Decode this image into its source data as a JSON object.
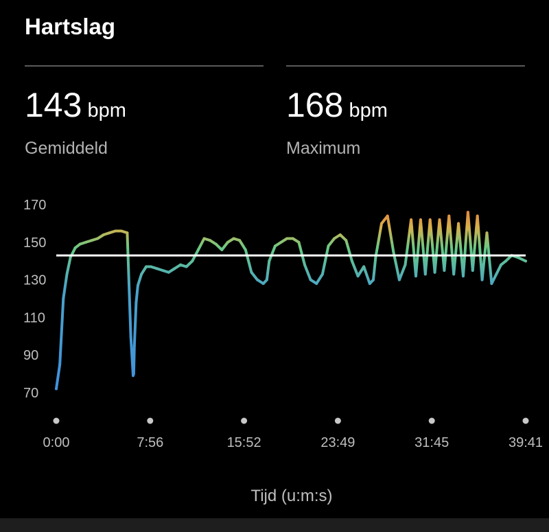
{
  "header": {
    "title": "Hartslag"
  },
  "stats": {
    "average": {
      "value": "143",
      "unit": "bpm",
      "label": "Gemiddeld"
    },
    "maximum": {
      "value": "168",
      "unit": "bpm",
      "label": "Maximum"
    }
  },
  "chart_data": {
    "type": "line",
    "title": "",
    "xlabel": "Tijd (u:m:s)",
    "ylabel": "",
    "x_ticks": [
      "0:00",
      "7:56",
      "15:52",
      "23:49",
      "31:45",
      "39:41"
    ],
    "y_ticks": [
      70,
      90,
      110,
      130,
      150,
      170
    ],
    "xlim": [
      0,
      39.68
    ],
    "ylim": [
      67,
      173
    ],
    "reference_line": {
      "value": 143,
      "color": "#ffffff"
    },
    "color_scale": {
      "low": "#3f8fe0",
      "mid": "#66c987",
      "high": "#f06535"
    },
    "grid": false,
    "series": [
      {
        "x": [
          0.0,
          0.3,
          0.6,
          0.9,
          1.2,
          1.6,
          2.0,
          2.5,
          3.0,
          3.5,
          4.0,
          4.5,
          5.0,
          5.5,
          6.0,
          6.3,
          6.5,
          6.55,
          6.6,
          6.75,
          6.9,
          7.2,
          7.6,
          8.0,
          8.5,
          9.0,
          9.5,
          10.0,
          10.5,
          11.0,
          11.5,
          12.0,
          12.5,
          13.0,
          13.5,
          14.0,
          14.5,
          15.0,
          15.5,
          16.0,
          16.5,
          17.0,
          17.5,
          17.8,
          18.0,
          18.5,
          19.0,
          19.5,
          20.0,
          20.5,
          21.0,
          21.5,
          22.0,
          22.5,
          23.0,
          23.5,
          24.0,
          24.5,
          25.0,
          25.5,
          26.0,
          26.5,
          26.8,
          27.0,
          27.5,
          28.0,
          28.5,
          29.0,
          29.5,
          30.0,
          30.4,
          30.8,
          31.2,
          31.6,
          32.0,
          32.4,
          32.8,
          33.2,
          33.6,
          34.0,
          34.4,
          34.8,
          35.2,
          35.6,
          36.0,
          36.4,
          36.8,
          37.2,
          37.6,
          38.0,
          38.5,
          39.0,
          39.68
        ],
        "y": [
          72,
          85,
          120,
          133,
          142,
          147,
          149,
          150,
          151,
          152,
          154,
          155,
          156,
          156,
          155,
          100,
          79,
          80,
          95,
          118,
          127,
          133,
          137,
          137,
          136,
          135,
          134,
          136,
          138,
          137,
          140,
          146,
          152,
          151,
          149,
          146,
          150,
          152,
          151,
          146,
          134,
          130,
          128,
          130,
          140,
          148,
          150,
          152,
          152,
          150,
          138,
          130,
          128,
          133,
          148,
          152,
          154,
          151,
          140,
          132,
          137,
          128,
          130,
          142,
          160,
          164,
          145,
          130,
          138,
          162,
          132,
          162,
          133,
          162,
          134,
          162,
          135,
          164,
          133,
          160,
          132,
          166,
          135,
          164,
          130,
          155,
          128,
          133,
          138,
          140,
          143,
          142,
          140
        ]
      }
    ]
  }
}
